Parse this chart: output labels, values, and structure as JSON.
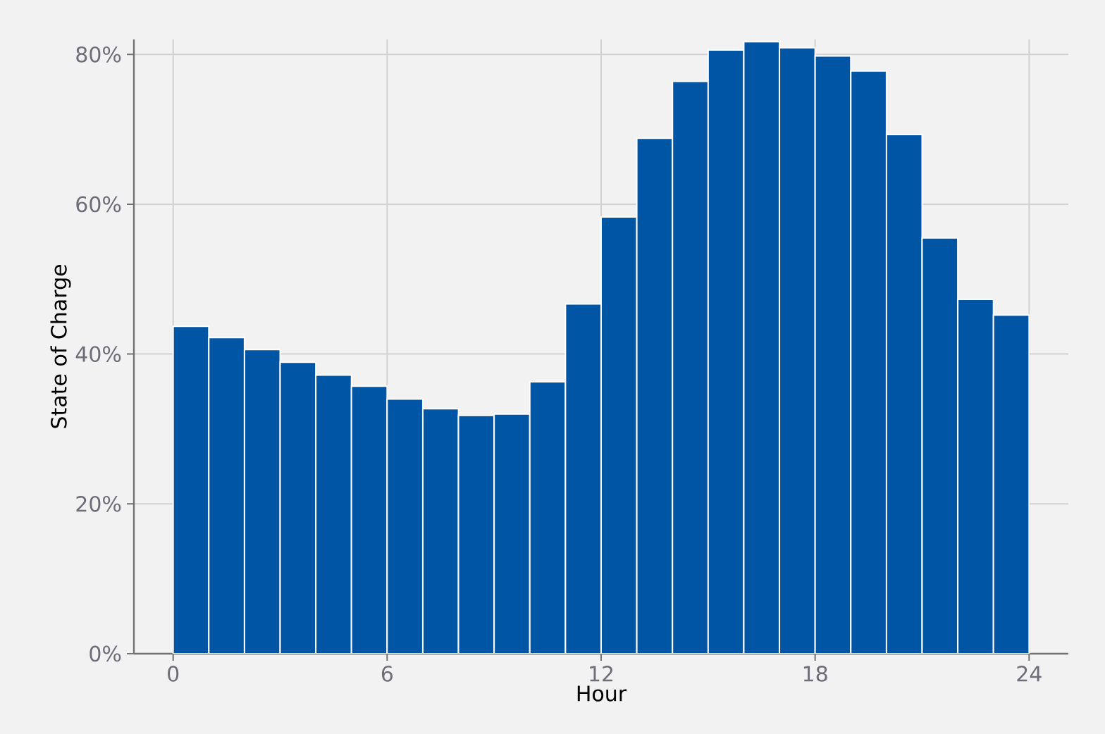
{
  "chart_data": {
    "type": "histogram",
    "xlabel": "Hour",
    "ylabel": "State of Charge",
    "bins": [
      0,
      1,
      2,
      3,
      4,
      5,
      6,
      7,
      8,
      9,
      10,
      11,
      12,
      13,
      14,
      15,
      16,
      17,
      18,
      19,
      20,
      21,
      22,
      23,
      24
    ],
    "values": [
      43.7,
      42.2,
      40.6,
      38.9,
      37.2,
      35.7,
      34.0,
      32.7,
      31.8,
      32.0,
      36.3,
      46.7,
      58.3,
      68.8,
      76.4,
      80.6,
      81.7,
      80.9,
      79.8,
      77.8,
      69.3,
      55.5,
      47.3,
      45.2
    ],
    "color": "#0055a4",
    "xlim": [
      -1.1,
      25.1
    ],
    "ylim": [
      0,
      82
    ],
    "xticks": [
      0,
      6,
      12,
      18,
      24
    ],
    "yticks": [
      {
        "value": 0,
        "label": "0%"
      },
      {
        "value": 20,
        "label": "20%"
      },
      {
        "value": 40,
        "label": "40%"
      },
      {
        "value": 60,
        "label": "60%"
      },
      {
        "value": 80,
        "label": "80%"
      }
    ],
    "grid": true
  }
}
